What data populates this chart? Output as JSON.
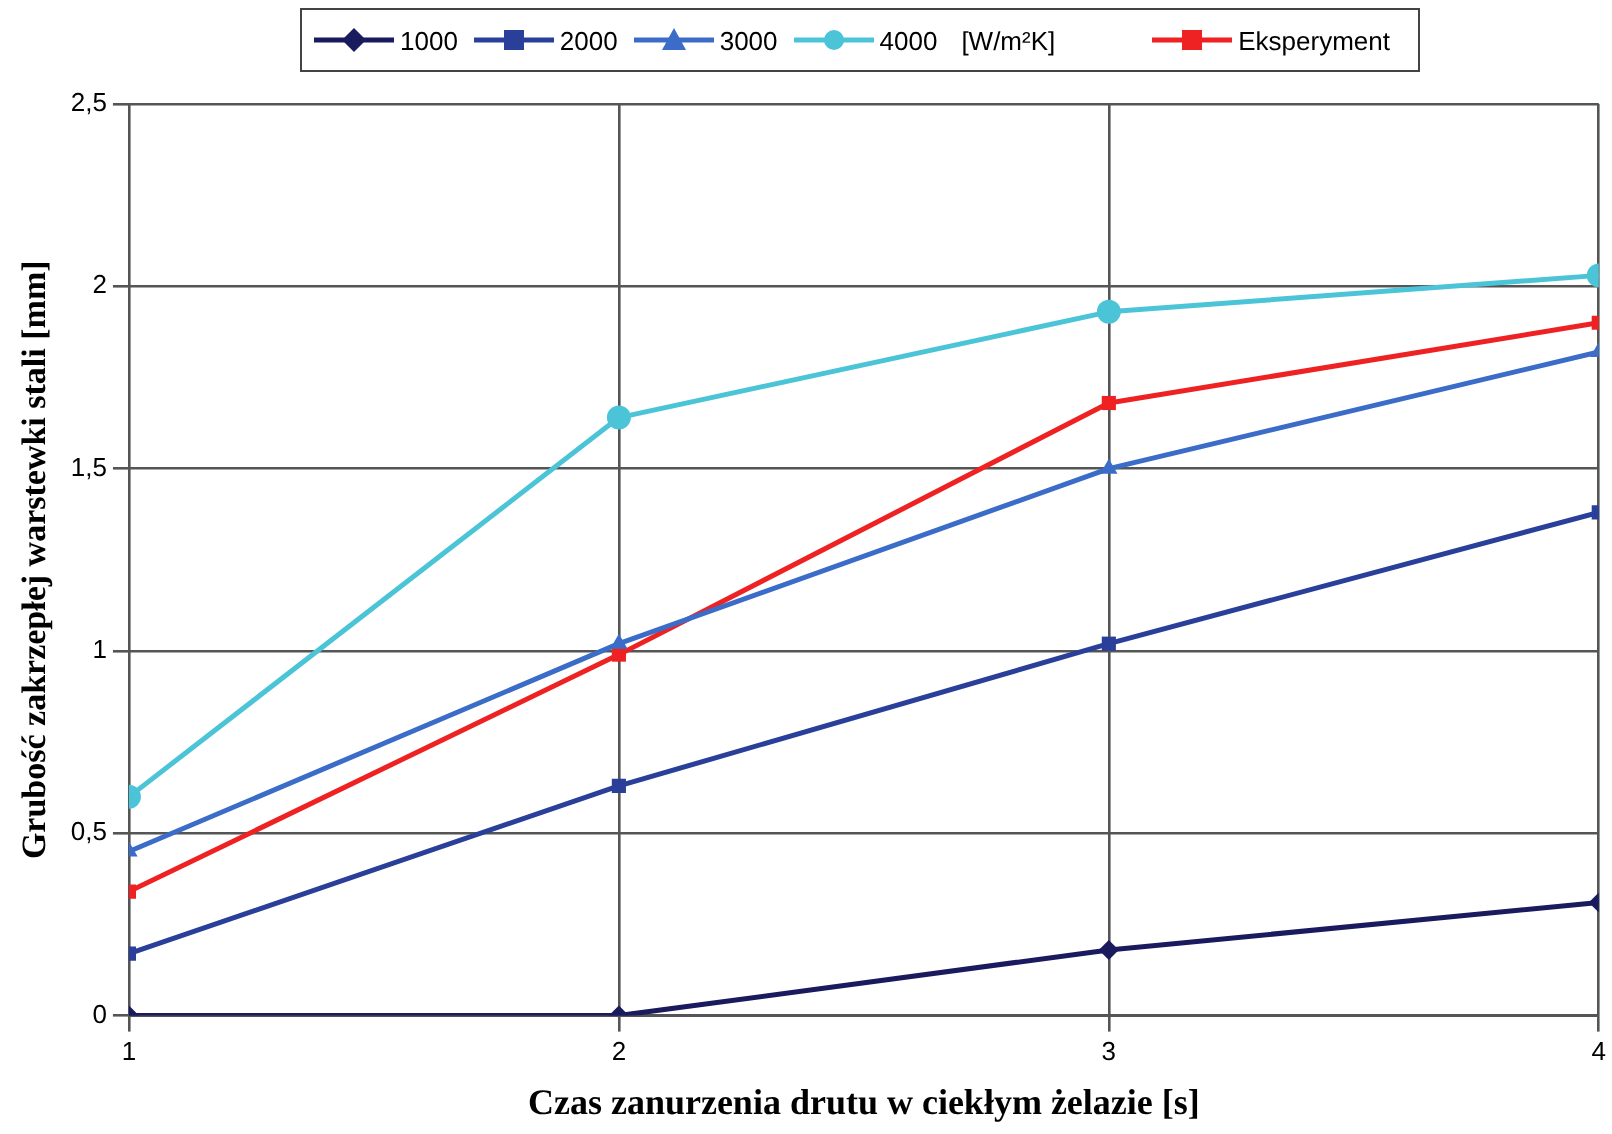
{
  "chart_data": {
    "type": "line",
    "xlabel": "Czas zanurzenia drutu w ciekłym żelazie [s]",
    "ylabel": "Grubość zakrzepłej warstewki stali [mm]",
    "legend_title": "[W/m²K]",
    "x": [
      1,
      2,
      3,
      4
    ],
    "xlim": [
      1,
      4
    ],
    "xticks": [
      1,
      2,
      3,
      4
    ],
    "ylim": [
      0,
      2.5
    ],
    "yticks": [
      0,
      {
        "value": 0.5,
        "label": "0,5"
      },
      1,
      {
        "value": 1.5,
        "label": "1,5"
      },
      2,
      {
        "value": 2.5,
        "label": "2,5"
      }
    ],
    "series": [
      {
        "name": "1000",
        "color": "#1a1a5e",
        "marker": "diamond",
        "values": [
          0,
          0,
          0.18,
          0.31
        ]
      },
      {
        "name": "2000",
        "color": "#2a3f9a",
        "marker": "square",
        "values": [
          0.17,
          0.63,
          1.02,
          1.38
        ]
      },
      {
        "name": "3000",
        "color": "#3a6cc8",
        "marker": "triangle",
        "values": [
          0.45,
          1.02,
          1.5,
          1.82
        ]
      },
      {
        "name": "4000",
        "color": "#4cc4d8",
        "marker": "circle",
        "values": [
          0.6,
          1.64,
          1.93,
          2.03
        ]
      },
      {
        "name": "Eksperyment",
        "color": "#ee2222",
        "marker": "square",
        "values": [
          0.34,
          0.99,
          1.68,
          1.9
        ]
      }
    ],
    "grid": true,
    "legend": "top",
    "line_style": "solid"
  }
}
